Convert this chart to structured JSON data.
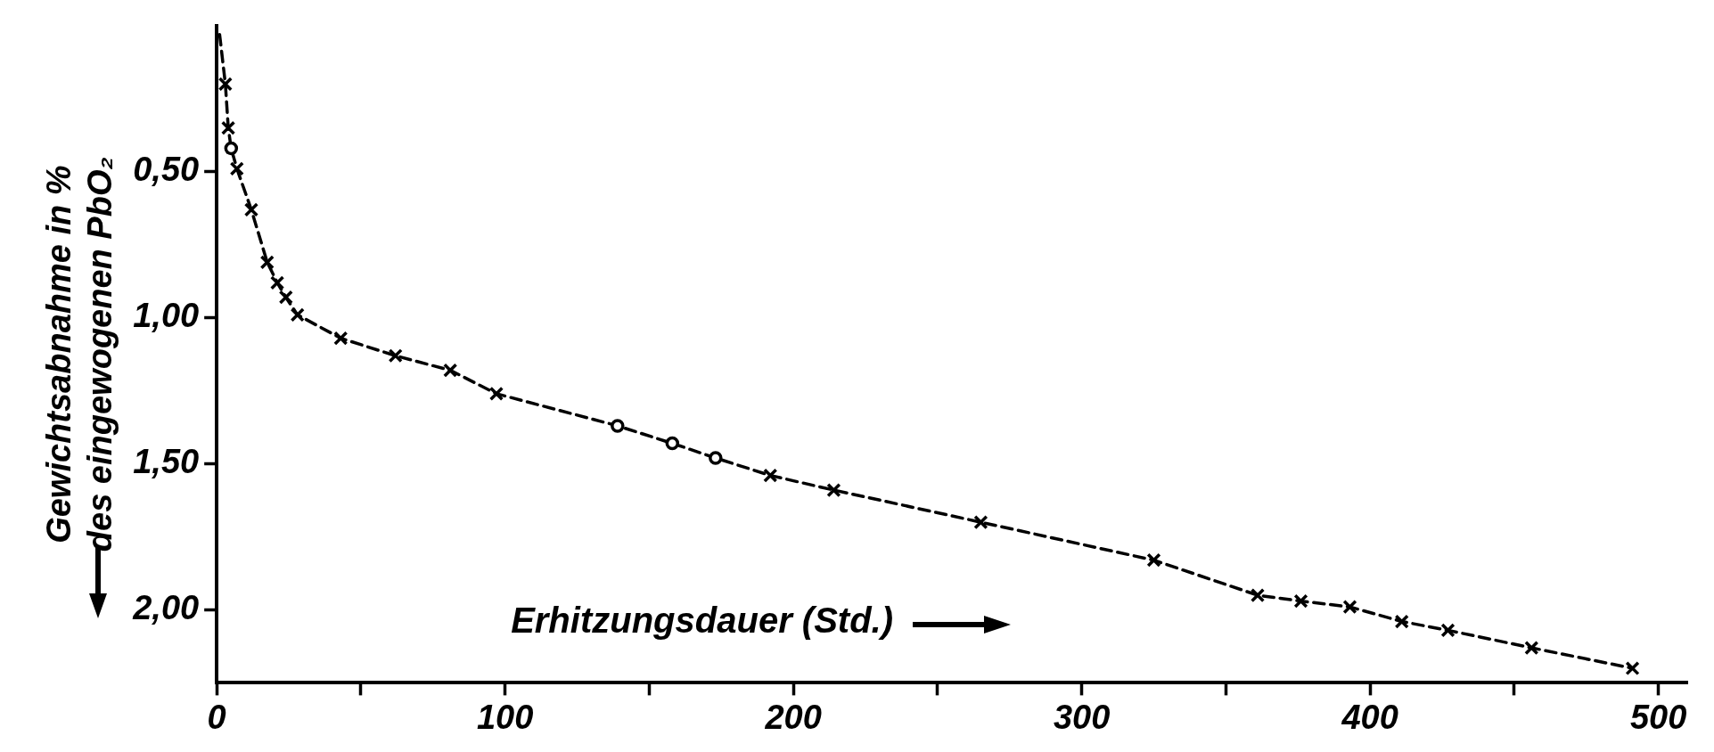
{
  "chart_data": {
    "type": "line",
    "xlabel": "Erhitzungsdauer (Std.)",
    "ylabel": "Gewichtsabnahme in %\ndes eingewogenen PbO₂",
    "xlim": [
      0,
      510
    ],
    "ylim": [
      2.25,
      0
    ],
    "xticks": [
      0,
      {
        "value": 50,
        "label": null
      },
      100,
      {
        "value": 150,
        "label": null
      },
      200,
      {
        "value": 250,
        "label": null
      },
      300,
      {
        "value": 350,
        "label": null
      },
      400,
      {
        "value": 450,
        "label": null
      },
      500
    ],
    "yticks": [
      {
        "value": 0.5,
        "label": "0,50"
      },
      {
        "value": 1,
        "label": "1,00"
      },
      {
        "value": 1.5,
        "label": "1,50"
      },
      {
        "value": 2,
        "label": "2,00"
      }
    ],
    "grid": false,
    "legend": false,
    "series": [
      {
        "color": "#000000",
        "line_style": "dashed",
        "marker": "none",
        "x": [
          1,
          3,
          4,
          5,
          7,
          12,
          17.5,
          21,
          24,
          28,
          43,
          62,
          81,
          97,
          139,
          158,
          173,
          192,
          214,
          265,
          325,
          361,
          376,
          393,
          411,
          427,
          456,
          491
        ],
        "values": [
          0.03,
          0.2,
          0.35,
          0.42,
          0.49,
          0.63,
          0.81,
          0.88,
          0.93,
          0.99,
          1.07,
          1.13,
          1.18,
          1.26,
          1.37,
          1.43,
          1.48,
          1.54,
          1.59,
          1.7,
          1.83,
          1.95,
          1.97,
          1.99,
          2.04,
          2.07,
          2.13,
          2.2
        ]
      },
      {
        "type": "scatter",
        "color": "#000000",
        "marker": "cross",
        "x": [
          3,
          4,
          7,
          12,
          17.5,
          21,
          24,
          28,
          43,
          62,
          81,
          97,
          192,
          214,
          265,
          325,
          361,
          376,
          393,
          411,
          427,
          456,
          491
        ],
        "values": [
          0.2,
          0.35,
          0.49,
          0.63,
          0.81,
          0.88,
          0.93,
          0.99,
          1.07,
          1.13,
          1.18,
          1.26,
          1.54,
          1.59,
          1.7,
          1.83,
          1.95,
          1.97,
          1.99,
          2.04,
          2.07,
          2.13,
          2.2
        ]
      },
      {
        "type": "scatter",
        "color": "#000000",
        "marker": "circle",
        "x": [
          5,
          139,
          158,
          173
        ],
        "values": [
          0.42,
          1.37,
          1.43,
          1.48
        ]
      }
    ]
  }
}
